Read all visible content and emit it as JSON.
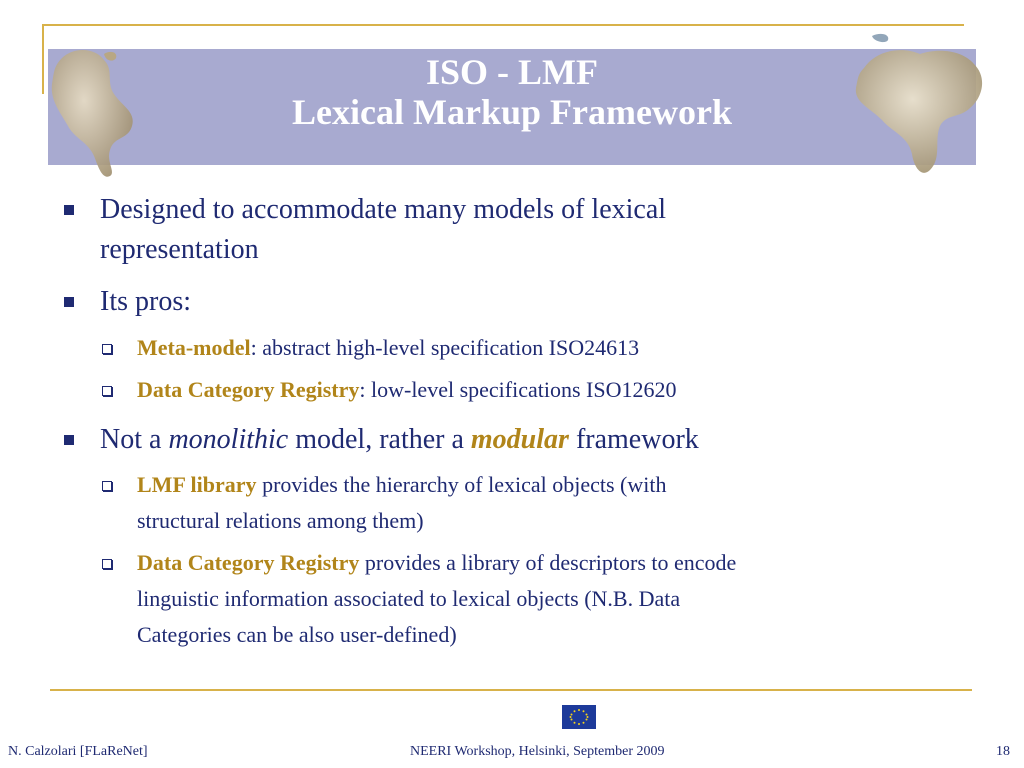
{
  "title": {
    "line1": "ISO - LMF",
    "line2": "Lexical Markup Framework"
  },
  "bullets": {
    "b1": {
      "line1": "Designed to accommodate many models of lexical",
      "line2": "representation"
    },
    "b2": {
      "text": "Its pros:",
      "sub1": {
        "bold": "Meta-model",
        "rest": ": abstract high-level specification ISO24613"
      },
      "sub2": {
        "bold": "Data Category Registry",
        "rest": ": low-level specifications ISO12620"
      }
    },
    "b3": {
      "part1": "Not a ",
      "italic": "monolithic",
      "part2": " model, rather a ",
      "modular": "modular",
      "part3": " framework",
      "sub1": {
        "bold": "LMF library",
        "rest1": " provides the hierarchy of lexical objects (with",
        "rest2": "structural relations among them)"
      },
      "sub2": {
        "bold": "Data Category Registry",
        "rest1": " provides a library of descriptors to encode",
        "rest2": "linguistic information associated to lexical objects (N.B. Data",
        "rest3": "Categories can be also user-defined)"
      }
    }
  },
  "footer": {
    "left": "N. Calzolari [FLaReNet]",
    "center": "NEERI Workshop, Helsinki, September 2009",
    "page": "18"
  },
  "colors": {
    "title_bg": "#a8aad0",
    "text": "#1f2a72",
    "accent": "#b1851a",
    "frame": "#d8b24a"
  }
}
